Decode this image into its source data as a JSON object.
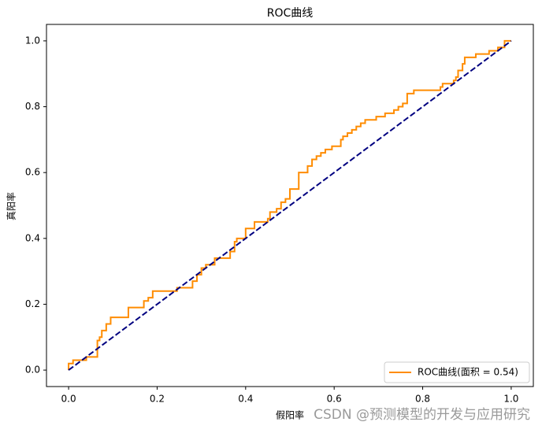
{
  "chart_data": {
    "type": "line",
    "title": "ROC曲线",
    "x_label": "假阳率",
    "y_label": "真阳率",
    "xlim": [
      -0.05,
      1.05
    ],
    "ylim": [
      -0.05,
      1.05
    ],
    "xticks": [
      {
        "value": 0,
        "label": "0.0"
      },
      0.2,
      0.4,
      0.6,
      0.8,
      {
        "value": 1,
        "label": "1.0"
      }
    ],
    "yticks": [
      {
        "value": 0,
        "label": "0.0"
      },
      0.2,
      0.4,
      0.6,
      0.8,
      {
        "value": 1,
        "label": "1.0"
      }
    ],
    "grid": false,
    "legend": "lower right",
    "series": [
      {
        "name": "ROC曲线(面积 = 0.54)",
        "color": "#ff8c00",
        "linestyle": "solid",
        "x": [
          0,
          0,
          0.01,
          0.01,
          0.04,
          0.04,
          0.065,
          0.065,
          0.07,
          0.07,
          0.075,
          0.075,
          0.085,
          0.085,
          0.095,
          0.095,
          0.135,
          0.135,
          0.17,
          0.17,
          0.18,
          0.18,
          0.19,
          0.19,
          0.245,
          0.245,
          0.28,
          0.28,
          0.29,
          0.29,
          0.3,
          0.3,
          0.31,
          0.31,
          0.33,
          0.33,
          0.365,
          0.365,
          0.375,
          0.375,
          0.38,
          0.38,
          0.4,
          0.4,
          0.42,
          0.42,
          0.45,
          0.45,
          0.455,
          0.455,
          0.47,
          0.47,
          0.48,
          0.48,
          0.49,
          0.49,
          0.5,
          0.5,
          0.52,
          0.52,
          0.54,
          0.54,
          0.55,
          0.55,
          0.56,
          0.56,
          0.57,
          0.57,
          0.58,
          0.58,
          0.595,
          0.595,
          0.615,
          0.615,
          0.62,
          0.62,
          0.63,
          0.63,
          0.64,
          0.64,
          0.65,
          0.65,
          0.66,
          0.66,
          0.67,
          0.67,
          0.695,
          0.695,
          0.715,
          0.715,
          0.735,
          0.735,
          0.745,
          0.745,
          0.755,
          0.755,
          0.765,
          0.765,
          0.78,
          0.78,
          0.84,
          0.84,
          0.845,
          0.845,
          0.87,
          0.87,
          0.875,
          0.875,
          0.88,
          0.88,
          0.89,
          0.89,
          0.895,
          0.895,
          0.92,
          0.92,
          0.95,
          0.95,
          0.97,
          0.97,
          0.985,
          0.985,
          1.0
        ],
        "values": [
          0,
          0.02,
          0.02,
          0.03,
          0.03,
          0.04,
          0.04,
          0.09,
          0.09,
          0.1,
          0.1,
          0.12,
          0.12,
          0.14,
          0.14,
          0.16,
          0.16,
          0.19,
          0.19,
          0.21,
          0.21,
          0.22,
          0.22,
          0.24,
          0.24,
          0.25,
          0.25,
          0.27,
          0.27,
          0.29,
          0.29,
          0.31,
          0.31,
          0.32,
          0.32,
          0.34,
          0.34,
          0.36,
          0.36,
          0.39,
          0.39,
          0.4,
          0.4,
          0.43,
          0.43,
          0.45,
          0.45,
          0.46,
          0.46,
          0.48,
          0.48,
          0.49,
          0.49,
          0.51,
          0.51,
          0.52,
          0.52,
          0.55,
          0.55,
          0.6,
          0.6,
          0.62,
          0.62,
          0.64,
          0.64,
          0.65,
          0.65,
          0.66,
          0.66,
          0.67,
          0.67,
          0.68,
          0.68,
          0.7,
          0.7,
          0.71,
          0.71,
          0.72,
          0.72,
          0.73,
          0.73,
          0.74,
          0.74,
          0.75,
          0.75,
          0.76,
          0.76,
          0.77,
          0.77,
          0.78,
          0.78,
          0.79,
          0.79,
          0.8,
          0.8,
          0.81,
          0.81,
          0.84,
          0.84,
          0.85,
          0.85,
          0.86,
          0.86,
          0.87,
          0.87,
          0.88,
          0.88,
          0.89,
          0.89,
          0.91,
          0.91,
          0.93,
          0.93,
          0.95,
          0.95,
          0.96,
          0.96,
          0.97,
          0.97,
          0.98,
          0.98,
          1.0,
          1.0
        ]
      },
      {
        "color": "#000080",
        "linestyle": "dashed",
        "x": [
          0,
          1
        ],
        "values": [
          0,
          1
        ]
      }
    ]
  },
  "watermark": "CSDN @预测模型的开发与应用研究"
}
